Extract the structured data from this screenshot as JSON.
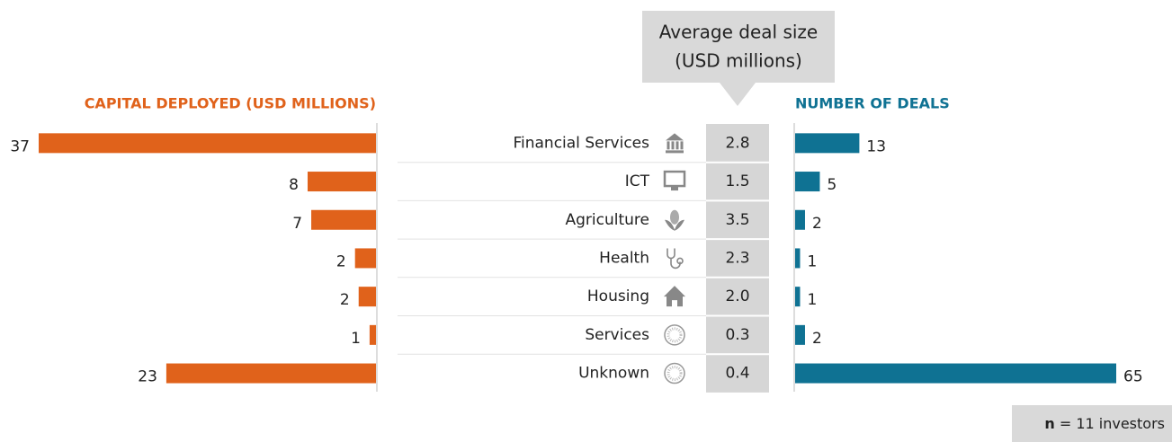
{
  "chart_data": {
    "type": "butterfly",
    "categories": [
      "Financial Services",
      "ICT",
      "Agriculture",
      "Health",
      "Housing",
      "Services",
      "Unknown"
    ],
    "series": [
      {
        "name": "CAPITAL DEPLOYED (USD MILLIONS)",
        "color": "#e0621b",
        "values": [
          37,
          7.5,
          7.1,
          2.3,
          1.9,
          0.7,
          23
        ],
        "value_labels": [
          "37",
          "8",
          "7",
          "2",
          "2",
          "1",
          "23"
        ]
      },
      {
        "name": "NUMBER OF DEALS",
        "color": "#0f7293",
        "values": [
          13,
          5,
          2,
          1,
          1,
          2,
          65
        ]
      }
    ],
    "table": {
      "title": [
        "Average deal size",
        "(USD millions)"
      ],
      "values": [
        "2.8",
        "1.5",
        "3.5",
        "2.3",
        "2.0",
        "0.3",
        "0.4"
      ]
    },
    "footnote": {
      "label": "n",
      "text": "= 11 investors"
    }
  }
}
